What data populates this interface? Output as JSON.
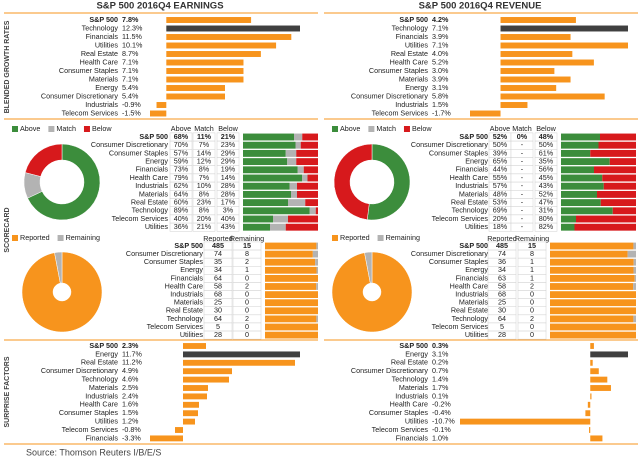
{
  "titles": [
    "S&P 500 2016Q4 EARNINGS",
    "S&P 500 2016Q4 REVENUE"
  ],
  "section_labels": [
    "BLENDED GROWTH RATES",
    "SCORECARD",
    "SURPRISE FACTORS"
  ],
  "source": "Source: Thomson Reuters I/B/E/S",
  "chart_data": [
    {
      "type": "bar",
      "categories": [
        "S&P 500",
        "Technology",
        "Financials",
        "Utilities",
        "Real Estate",
        "Health Care",
        "Consumer Staples",
        "Materials",
        "Energy",
        "Consumer Discretionary",
        "Industrials",
        "Telecom Services"
      ],
      "values": [
        7.8,
        12.3,
        11.5,
        10.1,
        8.7,
        7.1,
        7.1,
        7.1,
        5.4,
        5.4,
        -0.9,
        -1.5
      ],
      "value_labels": [
        "7.8%",
        "12.3%",
        "11.5%",
        "10.1%",
        "8.7%",
        "7.1%",
        "7.1%",
        "7.1%",
        "5.4%",
        "5.4%",
        "-0.9%",
        "-1.5%"
      ],
      "colors": [
        "#f7941d",
        "#404040",
        "#f7941d",
        "#f7941d",
        "#f7941d",
        "#f7941d",
        "#f7941d",
        "#f7941d",
        "#f7941d",
        "#f7941d",
        "#f7941d",
        "#f7941d"
      ]
    },
    {
      "type": "bar",
      "categories": [
        "S&P 500",
        "Technology",
        "Financials",
        "Utilities",
        "Real Estate",
        "Health Care",
        "Consumer Staples",
        "Materials",
        "Energy",
        "Consumer Discretionary",
        "Industrials",
        "Telecom Services"
      ],
      "values": [
        4.2,
        7.1,
        3.9,
        7.1,
        4.0,
        5.2,
        3.0,
        3.9,
        3.1,
        5.8,
        1.5,
        -1.7
      ],
      "value_labels": [
        "4.2%",
        "7.1%",
        "3.9%",
        "7.1%",
        "4.0%",
        "5.2%",
        "3.0%",
        "3.9%",
        "3.1%",
        "5.8%",
        "1.5%",
        "-1.7%"
      ],
      "colors": [
        "#f7941d",
        "#404040",
        "#f7941d",
        "#f7941d",
        "#f7941d",
        "#f7941d",
        "#f7941d",
        "#f7941d",
        "#f7941d",
        "#f7941d",
        "#f7941d",
        "#f7941d"
      ]
    },
    {
      "type": "stacked-bar",
      "categories": [
        "S&P 500",
        "Consumer Discretionary",
        "Consumer Staples",
        "Energy",
        "Financials",
        "Health Care",
        "Industrials",
        "Materials",
        "Real Estate",
        "Technology",
        "Telecom Services",
        "Utilities"
      ],
      "series": [
        {
          "name": "Above",
          "color": "#3c8d3c",
          "values": [
            68,
            70,
            57,
            59,
            73,
            79,
            62,
            64,
            60,
            89,
            40,
            36
          ],
          "value_labels": [
            "68%",
            "70%",
            "57%",
            "59%",
            "73%",
            "79%",
            "62%",
            "64%",
            "60%",
            "89%",
            "40%",
            "36%"
          ]
        },
        {
          "name": "Match",
          "color": "#b3b3b3",
          "values": [
            11,
            7,
            14,
            12,
            8,
            7,
            10,
            8,
            23,
            8,
            20,
            21
          ],
          "value_labels": [
            "11%",
            "7%",
            "14%",
            "12%",
            "8%",
            "7%",
            "10%",
            "8%",
            "23%",
            "8%",
            "20%",
            "21%"
          ]
        },
        {
          "name": "Below",
          "color": "#d7191c",
          "values": [
            21,
            23,
            29,
            29,
            19,
            14,
            28,
            28,
            17,
            3,
            40,
            43
          ],
          "value_labels": [
            "21%",
            "23%",
            "29%",
            "29%",
            "19%",
            "14%",
            "28%",
            "28%",
            "17%",
            "3%",
            "40%",
            "43%"
          ]
        }
      ]
    },
    {
      "type": "stacked-bar",
      "categories": [
        "S&P 500",
        "Consumer Discretionary",
        "Consumer Staples",
        "Energy",
        "Financials",
        "Health Care",
        "Industrials",
        "Materials",
        "Real Estate",
        "Technology",
        "Telecom Services",
        "Utilities"
      ],
      "series": [
        {
          "name": "Above",
          "color": "#3c8d3c",
          "values": [
            52,
            50,
            39,
            65,
            44,
            55,
            57,
            48,
            53,
            69,
            20,
            18
          ],
          "value_labels": [
            "52%",
            "50%",
            "39%",
            "65%",
            "44%",
            "55%",
            "57%",
            "48%",
            "53%",
            "69%",
            "20%",
            "18%"
          ]
        },
        {
          "name": "Match",
          "color": "#b3b3b3",
          "values": [
            0,
            0,
            0,
            0,
            0,
            0,
            0,
            0,
            0,
            0,
            0,
            0
          ],
          "value_labels": [
            "0%",
            "-",
            "-",
            "-",
            "-",
            "-",
            "-",
            "-",
            "-",
            "-",
            "-",
            "-"
          ]
        },
        {
          "name": "Below",
          "color": "#d7191c",
          "values": [
            48,
            50,
            61,
            35,
            56,
            45,
            43,
            52,
            47,
            31,
            80,
            82
          ],
          "value_labels": [
            "48%",
            "50%",
            "61%",
            "35%",
            "56%",
            "45%",
            "43%",
            "52%",
            "47%",
            "31%",
            "80%",
            "82%"
          ]
        }
      ]
    },
    {
      "type": "stacked-bar",
      "categories": [
        "S&P 500",
        "Consumer Discretionary",
        "Consumer Staples",
        "Energy",
        "Financials",
        "Health Care",
        "Industrials",
        "Materials",
        "Real Estate",
        "Technology",
        "Telecom Services",
        "Utilities"
      ],
      "series": [
        {
          "name": "Reported",
          "color": "#f7941d",
          "values": [
            485,
            74,
            35,
            34,
            64,
            58,
            68,
            25,
            30,
            64,
            5,
            28
          ]
        },
        {
          "name": "Remaining",
          "color": "#b3b3b3",
          "values": [
            15,
            8,
            2,
            1,
            0,
            2,
            0,
            0,
            0,
            2,
            0,
            0
          ]
        }
      ]
    },
    {
      "type": "stacked-bar",
      "categories": [
        "S&P 500",
        "Consumer Discretionary",
        "Consumer Staples",
        "Energy",
        "Financials",
        "Health Care",
        "Industrials",
        "Materials",
        "Real Estate",
        "Technology",
        "Telecom Services",
        "Utilities"
      ],
      "series": [
        {
          "name": "Reported",
          "color": "#f7941d",
          "values": [
            485,
            74,
            36,
            34,
            63,
            58,
            68,
            25,
            30,
            64,
            5,
            28
          ]
        },
        {
          "name": "Remaining",
          "color": "#b3b3b3",
          "values": [
            15,
            8,
            1,
            1,
            1,
            2,
            0,
            0,
            0,
            2,
            0,
            0
          ]
        }
      ]
    },
    {
      "type": "bar",
      "categories": [
        "S&P 500",
        "Energy",
        "Real Estate",
        "Consumer Discretionary",
        "Technology",
        "Materials",
        "Industrials",
        "Health Care",
        "Consumer Staples",
        "Utilities",
        "Telecom Services",
        "Financials"
      ],
      "values": [
        2.3,
        11.7,
        11.2,
        4.9,
        4.6,
        2.5,
        2.4,
        1.6,
        1.5,
        1.2,
        -0.8,
        -3.3
      ],
      "value_labels": [
        "2.3%",
        "11.7%",
        "11.2%",
        "4.9%",
        "4.6%",
        "2.5%",
        "2.4%",
        "1.6%",
        "1.5%",
        "1.2%",
        "-0.8%",
        "-3.3%"
      ],
      "colors": [
        "#f7941d",
        "#404040",
        "#f7941d",
        "#f7941d",
        "#f7941d",
        "#f7941d",
        "#f7941d",
        "#f7941d",
        "#f7941d",
        "#f7941d",
        "#f7941d",
        "#f7941d"
      ]
    },
    {
      "type": "bar",
      "categories": [
        "S&P 500",
        "Energy",
        "Real Estate",
        "Consumer Discretionary",
        "Technology",
        "Materials",
        "Industrials",
        "Health Care",
        "Consumer Staples",
        "Utilities",
        "Telecom Services",
        "Financials"
      ],
      "values": [
        0.3,
        3.1,
        0.2,
        0.7,
        1.4,
        1.7,
        0.1,
        -0.2,
        -0.4,
        -10.7,
        -0.1,
        1.0
      ],
      "value_labels": [
        "0.3%",
        "3.1%",
        "0.2%",
        "0.7%",
        "1.4%",
        "1.7%",
        "0.1%",
        "-0.2%",
        "-0.4%",
        "-10.7%",
        "-0.1%",
        "1.0%"
      ],
      "colors": [
        "#f7941d",
        "#404040",
        "#f7941d",
        "#f7941d",
        "#f7941d",
        "#f7941d",
        "#f7941d",
        "#f7941d",
        "#f7941d",
        "#f7941d",
        "#f7941d",
        "#f7941d"
      ]
    }
  ]
}
